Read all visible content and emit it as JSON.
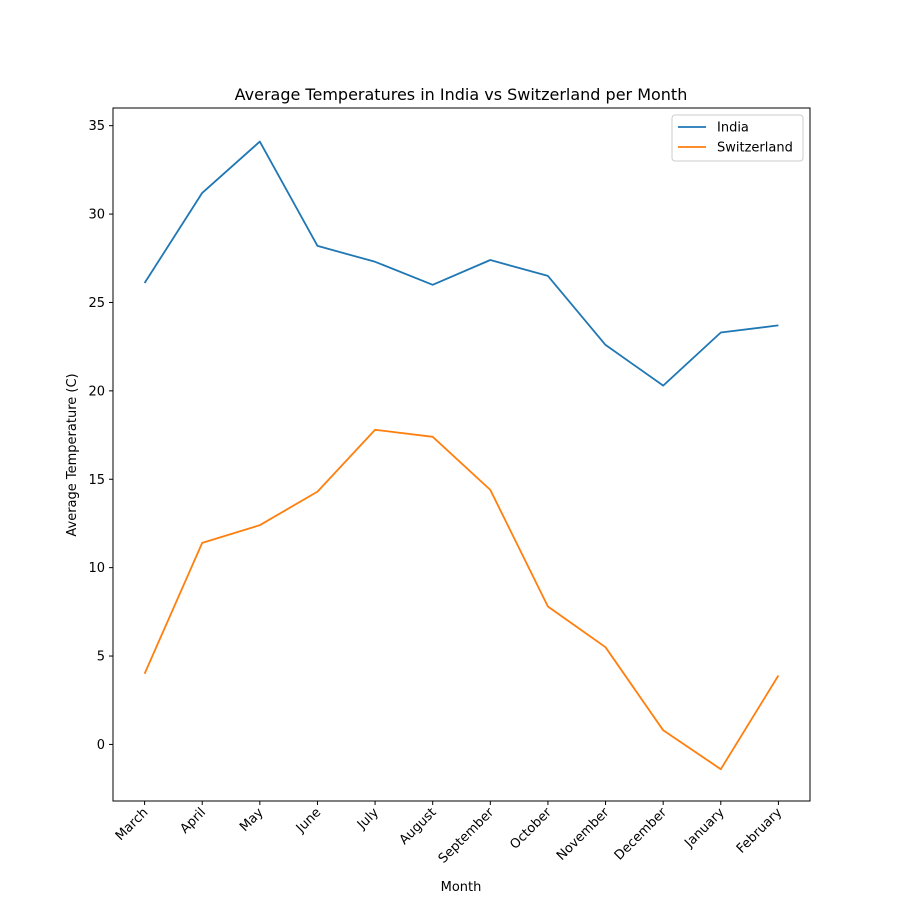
{
  "chart_data": {
    "type": "line",
    "title": "Average Temperatures in India vs Switzerland per Month",
    "xlabel": "Month",
    "ylabel": "Average Temperature (C)",
    "categories": [
      "March",
      "April",
      "May",
      "June",
      "July",
      "August",
      "September",
      "October",
      "November",
      "December",
      "January",
      "February"
    ],
    "series": [
      {
        "name": "India",
        "color": "#1f77b4",
        "values": [
          26.1,
          31.2,
          34.1,
          28.2,
          27.3,
          26.0,
          27.4,
          26.5,
          22.6,
          20.3,
          23.3,
          23.7
        ]
      },
      {
        "name": "Switzerland",
        "color": "#ff7f0e",
        "values": [
          4.0,
          11.4,
          12.4,
          14.3,
          17.8,
          17.4,
          14.4,
          7.8,
          5.5,
          0.8,
          -1.4,
          3.9
        ]
      }
    ],
    "ylim": [
      -3.2,
      36
    ],
    "yticks": [
      0,
      5,
      10,
      15,
      20,
      25,
      30,
      35
    ],
    "grid": false,
    "legend_position": "top-right"
  }
}
